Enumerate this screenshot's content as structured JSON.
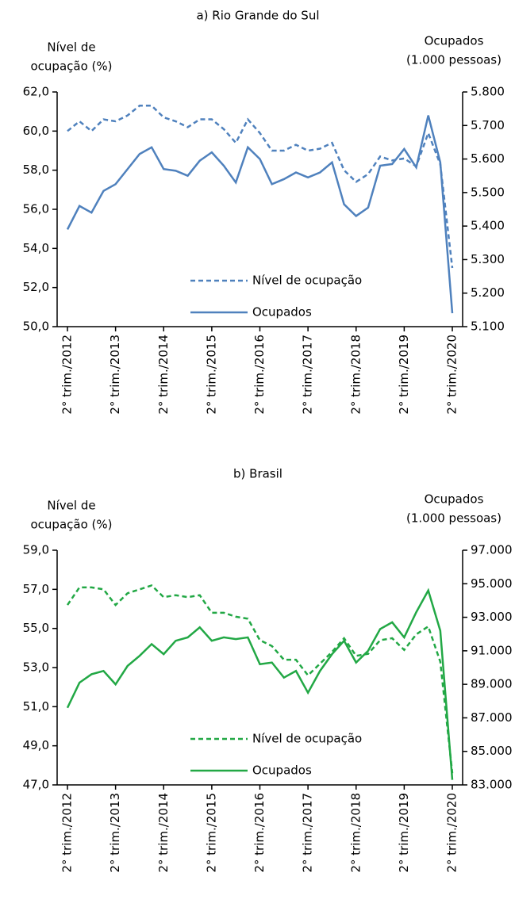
{
  "chart_data": [
    {
      "type": "line",
      "title": "a) Rio Grande do Sul",
      "y_label": [
        "Nível de",
        "ocupação (%)"
      ],
      "y2_label": [
        "Ocupados",
        "(1.000 pessoas)"
      ],
      "categories": [
        "2° trim./2012",
        null,
        null,
        null,
        "2° trim./2013",
        null,
        null,
        null,
        "2° trim./2014",
        null,
        null,
        null,
        "2° trim./2015",
        null,
        null,
        null,
        "2° trim./2016",
        null,
        null,
        null,
        "2° trim./2017",
        null,
        null,
        null,
        "2° trim./2018",
        null,
        null,
        null,
        "2° trim./2019",
        null,
        null,
        null,
        "2° trim./2020"
      ],
      "ylim": [
        50,
        62
      ],
      "yticks": [
        {
          "value": 50,
          "label": "50,0"
        },
        {
          "value": 52,
          "label": "52,0"
        },
        {
          "value": 54,
          "label": "54,0"
        },
        {
          "value": 56,
          "label": "56,0"
        },
        {
          "value": 58,
          "label": "58,0"
        },
        {
          "value": 60,
          "label": "60,0"
        },
        {
          "value": 62,
          "label": "62,0"
        }
      ],
      "y2lim": [
        5100,
        5800
      ],
      "y2ticks": [
        {
          "value": 5100,
          "label": "5.100"
        },
        {
          "value": 5200,
          "label": "5.200"
        },
        {
          "value": 5300,
          "label": "5.300"
        },
        {
          "value": 5400,
          "label": "5.400"
        },
        {
          "value": 5500,
          "label": "5.500"
        },
        {
          "value": 5600,
          "label": "5.600"
        },
        {
          "value": 5700,
          "label": "5.700"
        },
        {
          "value": 5800,
          "label": "5.800"
        }
      ],
      "series": [
        {
          "name": "Nível de ocupação",
          "color": "#4f81bd",
          "style": "dashed",
          "values": [
            60.0,
            60.5,
            60.0,
            60.6,
            60.5,
            60.8,
            61.3,
            61.3,
            60.7,
            60.5,
            60.2,
            60.6,
            60.6,
            60.1,
            59.4,
            60.6,
            59.9,
            59.0,
            59.0,
            59.3,
            59.0,
            59.1,
            59.4,
            58.0,
            57.4,
            57.8,
            58.7,
            58.5,
            58.6,
            58.2,
            59.9,
            58.3,
            53.0
          ]
        },
        {
          "name": "Ocupados",
          "color": "#4f81bd",
          "style": "solid",
          "axis": "y2",
          "values": [
            5390,
            5460,
            5440,
            5505,
            5525,
            5570,
            5615,
            5635,
            5570,
            5565,
            5550,
            5595,
            5620,
            5580,
            5530,
            5635,
            5600,
            5525,
            5540,
            5560,
            5545,
            5560,
            5590,
            5465,
            5430,
            5455,
            5580,
            5585,
            5630,
            5575,
            5730,
            5590,
            5140
          ]
        }
      ]
    },
    {
      "type": "line",
      "title": "b) Brasil",
      "y_label": [
        "Nível de",
        "ocupação (%)"
      ],
      "y2_label": [
        "Ocupados",
        "(1.000 pessoas)"
      ],
      "categories": [
        "2° trim./2012",
        null,
        null,
        null,
        "2° trim./2013",
        null,
        null,
        null,
        "2° trim./2014",
        null,
        null,
        null,
        "2° trim./2015",
        null,
        null,
        null,
        "2° trim./2016",
        null,
        null,
        null,
        "2° trim./2017",
        null,
        null,
        null,
        "2° trim./2018",
        null,
        null,
        null,
        "2° trim./2019",
        null,
        null,
        null,
        "2° trim./2020"
      ],
      "ylim": [
        47,
        59
      ],
      "yticks": [
        {
          "value": 47,
          "label": "47,0"
        },
        {
          "value": 49,
          "label": "49,0"
        },
        {
          "value": 51,
          "label": "51,0"
        },
        {
          "value": 53,
          "label": "53,0"
        },
        {
          "value": 55,
          "label": "55,0"
        },
        {
          "value": 57,
          "label": "57,0"
        },
        {
          "value": 59,
          "label": "59,0"
        }
      ],
      "y2lim": [
        83000,
        97000
      ],
      "y2ticks": [
        {
          "value": 83000,
          "label": "83.000"
        },
        {
          "value": 85000,
          "label": "85.000"
        },
        {
          "value": 87000,
          "label": "87.000"
        },
        {
          "value": 89000,
          "label": "89.000"
        },
        {
          "value": 91000,
          "label": "91.000"
        },
        {
          "value": 93000,
          "label": "93.000"
        },
        {
          "value": 95000,
          "label": "95.000"
        },
        {
          "value": 97000,
          "label": "97.000"
        }
      ],
      "series": [
        {
          "name": "Nível de ocupação",
          "color": "#22a845",
          "style": "dashed",
          "values": [
            56.2,
            57.1,
            57.1,
            57.0,
            56.2,
            56.8,
            57.0,
            57.2,
            56.6,
            56.7,
            56.6,
            56.7,
            55.8,
            55.8,
            55.6,
            55.5,
            54.4,
            54.1,
            53.4,
            53.4,
            52.6,
            53.2,
            53.8,
            54.5,
            53.6,
            53.7,
            54.4,
            54.5,
            53.9,
            54.7,
            55.1,
            53.3,
            47.6
          ]
        },
        {
          "name": "Ocupados",
          "color": "#22a845",
          "style": "solid",
          "axis": "y2",
          "values": [
            87600,
            89100,
            89600,
            89800,
            89000,
            90100,
            90700,
            91400,
            90800,
            91600,
            91800,
            92400,
            91600,
            91800,
            91700,
            91800,
            90200,
            90300,
            89400,
            89800,
            88500,
            89800,
            90800,
            91600,
            90300,
            91000,
            92300,
            92700,
            91800,
            93300,
            94600,
            92200,
            83300
          ]
        }
      ]
    }
  ]
}
